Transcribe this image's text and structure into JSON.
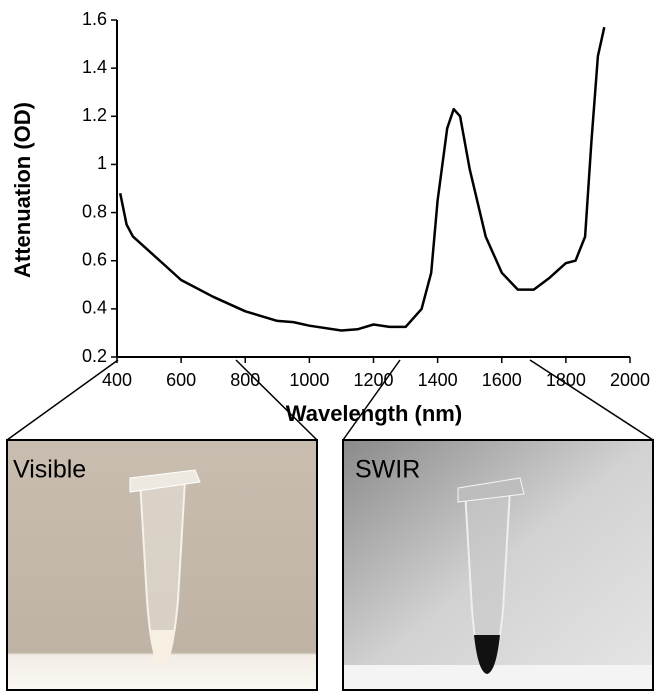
{
  "chart_data": {
    "type": "line",
    "x_label": "Wavelength (nm)",
    "y_label": "Attenuation (OD)",
    "x": [
      410,
      430,
      450,
      500,
      550,
      600,
      700,
      800,
      900,
      950,
      1000,
      1100,
      1150,
      1200,
      1250,
      1300,
      1350,
      1380,
      1400,
      1430,
      1450,
      1470,
      1500,
      1550,
      1600,
      1650,
      1700,
      1750,
      1800,
      1830,
      1860,
      1880,
      1900,
      1920
    ],
    "values": [
      0.88,
      0.75,
      0.7,
      0.64,
      0.58,
      0.52,
      0.45,
      0.39,
      0.35,
      0.345,
      0.33,
      0.31,
      0.315,
      0.335,
      0.325,
      0.325,
      0.4,
      0.55,
      0.85,
      1.15,
      1.23,
      1.2,
      0.98,
      0.7,
      0.55,
      0.48,
      0.48,
      0.53,
      0.59,
      0.6,
      0.7,
      1.1,
      1.45,
      1.57
    ],
    "color": "#000000",
    "xlim": [
      400,
      2000
    ],
    "xticks": [
      400,
      600,
      800,
      1000,
      1200,
      1400,
      1600,
      1800,
      2000
    ],
    "ylim": [
      0.2,
      1.6
    ],
    "yticks": [
      0.2,
      0.4,
      0.6,
      0.8,
      1,
      1.2,
      1.4,
      1.6
    ],
    "grid": false
  },
  "photos": [
    {
      "label": "Visible"
    },
    {
      "label": "SWIR"
    }
  ]
}
